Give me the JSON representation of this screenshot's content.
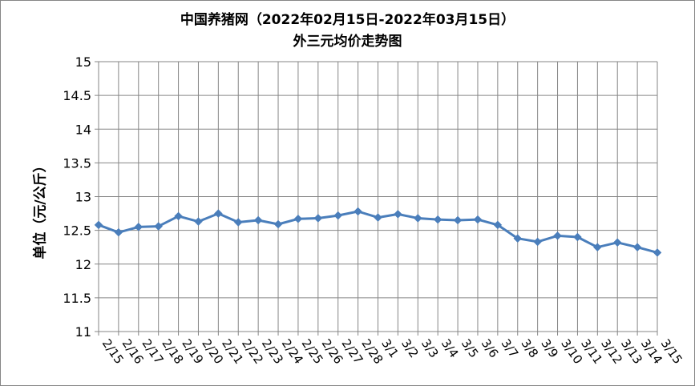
{
  "chart_data": {
    "type": "line",
    "title": "中国养猪网（2022年02月15日-2022年03月15日）",
    "subtitle": "外三元均价走势图",
    "xlabel": "",
    "ylabel": "单位（元/公斤）",
    "ylim": [
      11,
      15
    ],
    "y_ticks": [
      "11",
      "11.5",
      "12",
      "12.5",
      "13",
      "13.5",
      "14",
      "14.5",
      "15"
    ],
    "grid": true,
    "categories": [
      "2/15",
      "2/16",
      "2/17",
      "2/18",
      "2/19",
      "2/20",
      "2/21",
      "2/22",
      "2/23",
      "2/24",
      "2/25",
      "2/26",
      "2/27",
      "2/28",
      "3/1",
      "3/2",
      "3/3",
      "3/4",
      "3/5",
      "3/6",
      "3/7",
      "3/8",
      "3/9",
      "3/10",
      "3/11",
      "3/12",
      "3/13",
      "3/14",
      "3/15"
    ],
    "series": [
      {
        "color": "#4a7ebb",
        "values": [
          12.58,
          12.47,
          12.55,
          12.56,
          12.71,
          12.63,
          12.75,
          12.62,
          12.65,
          12.59,
          12.67,
          12.68,
          12.72,
          12.78,
          12.69,
          12.74,
          12.68,
          12.66,
          12.65,
          12.66,
          12.58,
          12.38,
          12.33,
          12.42,
          12.4,
          12.25,
          12.32,
          12.25,
          12.17
        ]
      }
    ]
  }
}
